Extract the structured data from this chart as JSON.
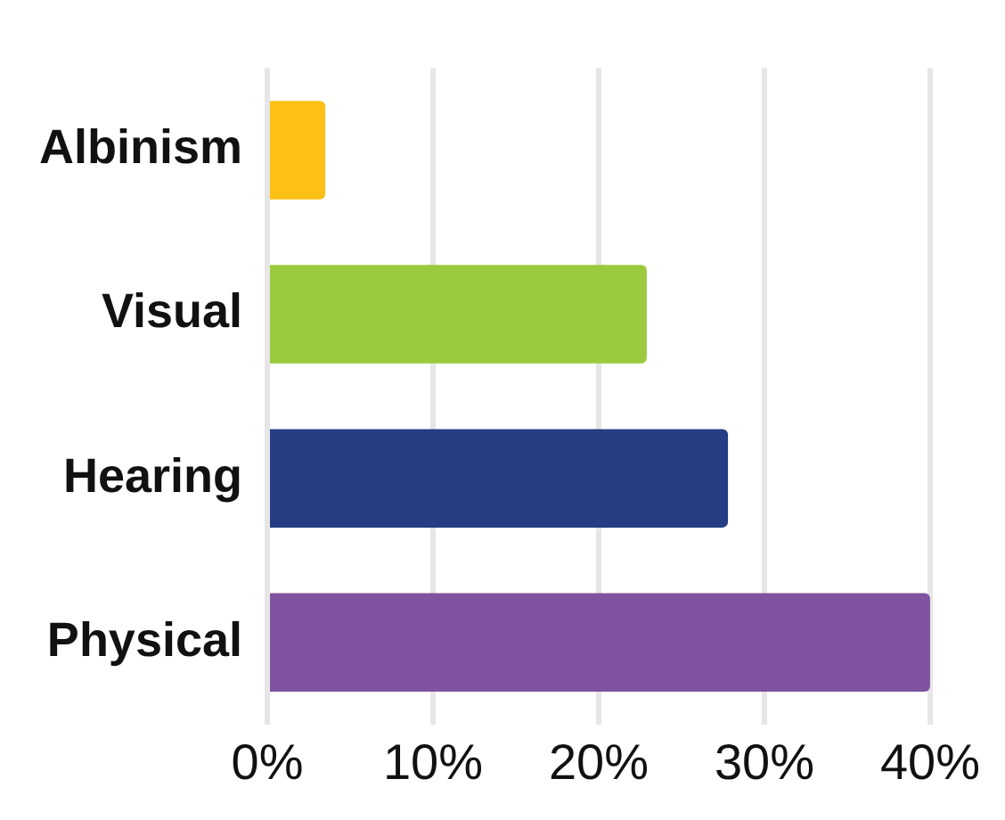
{
  "chart_data": {
    "type": "bar",
    "orientation": "horizontal",
    "categories": [
      "Albinism",
      "Visual",
      "Hearing",
      "Physical"
    ],
    "values": [
      3.5,
      22.9,
      27.8,
      40
    ],
    "colors": [
      "#fdc016",
      "#9bca3e",
      "#253d82",
      "#7f539f"
    ],
    "xlim": [
      0,
      40
    ],
    "xticks": [
      {
        "value": 0,
        "label": "0%"
      },
      {
        "value": 10,
        "label": "10%"
      },
      {
        "value": 20,
        "label": "20%"
      },
      {
        "value": 30,
        "label": "30%"
      },
      {
        "value": 40,
        "label": "40%"
      }
    ],
    "grid": "x",
    "legend": false
  }
}
